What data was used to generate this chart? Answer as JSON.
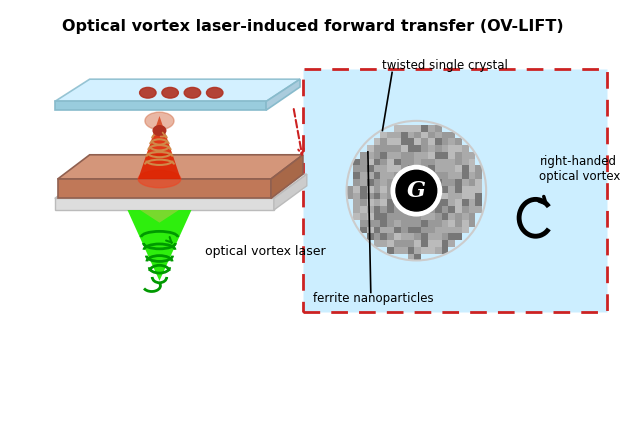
{
  "title": "Optical vortex laser-induced forward transfer (OV-LIFT)",
  "title_fontsize": 11.5,
  "bg_color": "#ffffff",
  "panel_bg": "#cceeff",
  "panel_border": "#cc2222",
  "top_plate_top": "#c5eaf5",
  "top_plate_front": "#b0dde8",
  "top_plate_edge": "#88c0cc",
  "bottom_plate_top": "#d4967a",
  "bottom_plate_front": "#c07858",
  "bottom_plate_side": "#a86848",
  "bottom_plate_base_top": "#e8e8e8",
  "bottom_plate_base_front": "#d8d8d8",
  "dot_color": "#b03020",
  "laser_green": "#22dd00",
  "laser_red": "#cc2200",
  "spiral_orange": "#d08848",
  "text_color": "#000000",
  "label_twisted": "twisted single crystal",
  "label_ferrite": "ferrite nanoparticles",
  "label_right": "right-handed\noptical vortex",
  "label_laser": "optical vortex laser",
  "nano_dot_color": "#888888",
  "nano_dot_color2": "#666666"
}
